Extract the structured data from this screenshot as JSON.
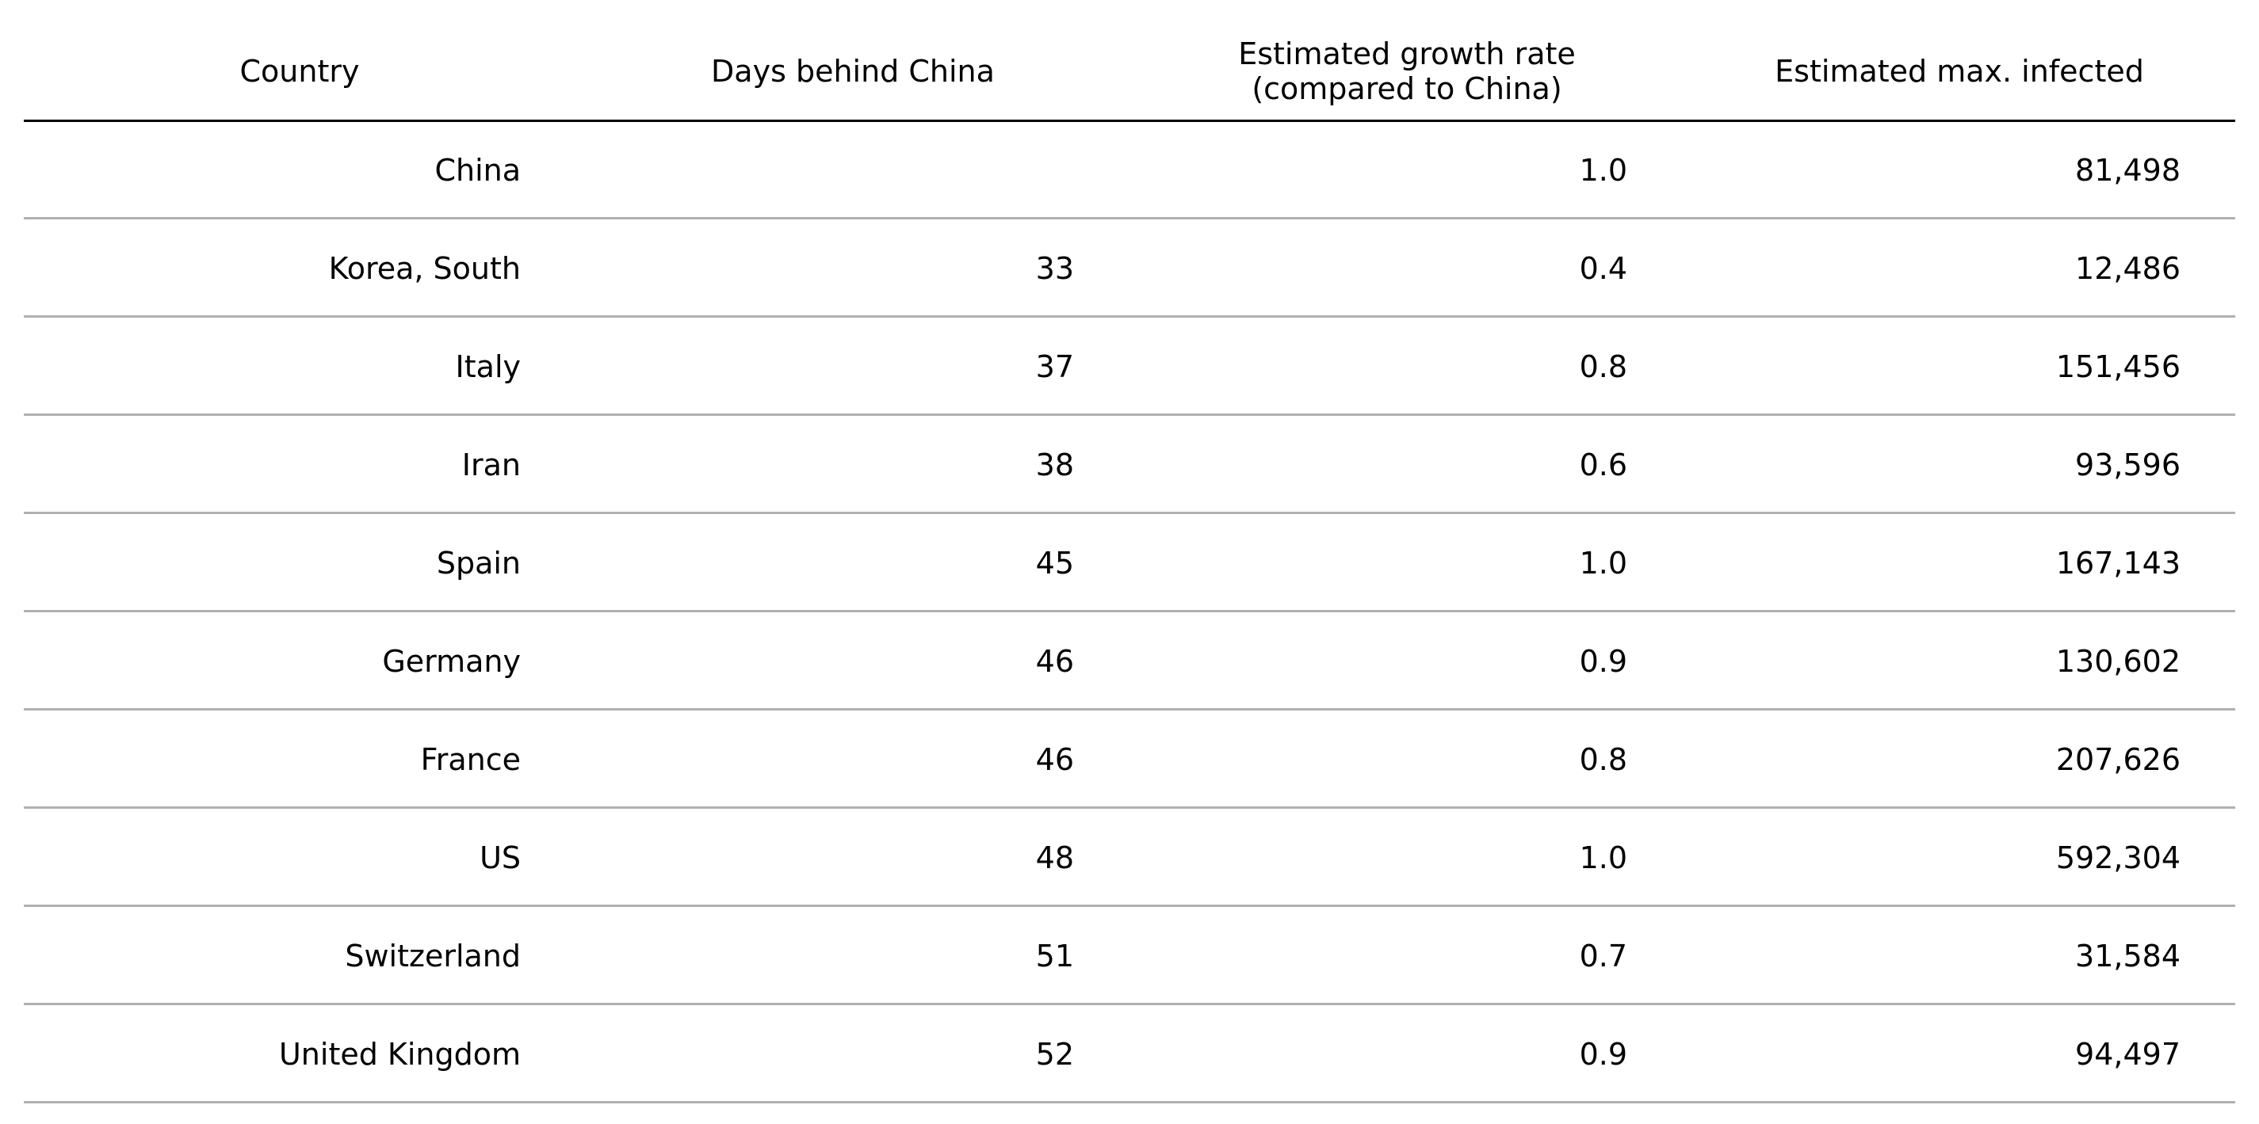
{
  "chart_data": {
    "type": "table",
    "columns": [
      "Country",
      "Days behind China",
      "Estimated growth rate\n(compared to China)",
      "Estimated max. infected"
    ],
    "rows": [
      [
        "China",
        "",
        "1.0",
        "81,498"
      ],
      [
        "Korea, South",
        "33",
        "0.4",
        "12,486"
      ],
      [
        "Italy",
        "37",
        "0.8",
        "151,456"
      ],
      [
        "Iran",
        "38",
        "0.6",
        "93,596"
      ],
      [
        "Spain",
        "45",
        "1.0",
        "167,143"
      ],
      [
        "Germany",
        "46",
        "0.9",
        "130,602"
      ],
      [
        "France",
        "46",
        "0.8",
        "207,626"
      ],
      [
        "US",
        "48",
        "1.0",
        "592,304"
      ],
      [
        "Switzerland",
        "51",
        "0.7",
        "31,584"
      ],
      [
        "United Kingdom",
        "52",
        "0.9",
        "94,497"
      ]
    ],
    "colors": {
      "header_rule": "#000000",
      "row_rule": "#b0b0b0",
      "text": "#000000"
    }
  }
}
